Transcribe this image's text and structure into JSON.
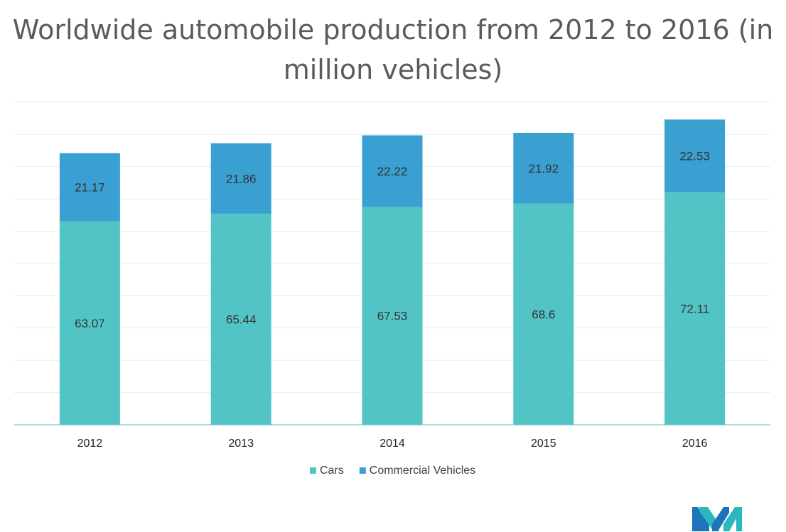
{
  "chart_data": {
    "type": "bar",
    "stacked": true,
    "title": "Worldwide automobile production from 2012 to 2016 (in million vehicles)",
    "categories": [
      "2012",
      "2013",
      "2014",
      "2015",
      "2016"
    ],
    "series": [
      {
        "name": "Cars",
        "values": [
          63.07,
          65.44,
          67.53,
          68.6,
          72.11
        ],
        "color": "#52c4c6"
      },
      {
        "name": "Commercial Vehicles",
        "values": [
          21.17,
          21.86,
          22.22,
          21.92,
          22.53
        ],
        "color": "#3a9fd1"
      }
    ],
    "ylim": [
      0,
      100
    ],
    "grid": true,
    "legend": "bottom",
    "xlabel": "",
    "ylabel": ""
  },
  "logo": {
    "name": "brand-logo",
    "colors": [
      "#1e74b8",
      "#2ab7bf"
    ]
  }
}
